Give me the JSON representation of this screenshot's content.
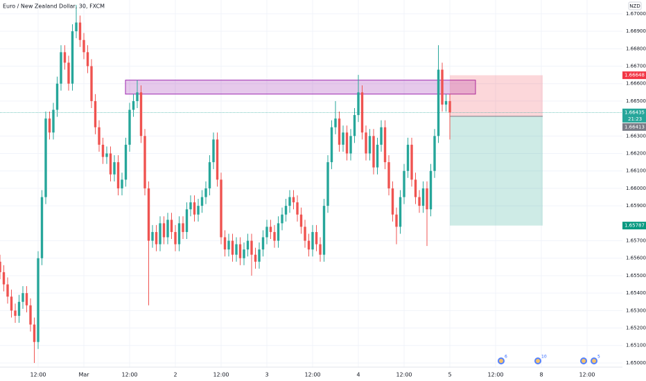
{
  "chart_data": {
    "type": "candlestick",
    "title": "Euro / New Zealand Dollar, 30, FXCM",
    "currency": "NZD",
    "up_color": "#26a69a",
    "down_color": "#ef5350",
    "xlim": [
      0,
      163.27
    ],
    "ylim": [
      1.64976,
      1.67079
    ],
    "xticks": [
      {
        "value": 10,
        "label": "12:00"
      },
      {
        "value": 22,
        "label": "Mar"
      },
      {
        "value": 34,
        "label": "12:00"
      },
      {
        "value": 46,
        "label": "2"
      },
      {
        "value": 58,
        "label": "12:00"
      },
      {
        "value": 70,
        "label": "3"
      },
      {
        "value": 82,
        "label": "12:00"
      },
      {
        "value": 94,
        "label": "4"
      },
      {
        "value": 106,
        "label": "12:00"
      },
      {
        "value": 118,
        "label": "5"
      },
      {
        "value": 130,
        "label": "12:00"
      },
      {
        "value": 142,
        "label": "8"
      },
      {
        "value": 154,
        "label": "12:00"
      }
    ],
    "yticks": [
      {
        "value": 1.67,
        "label": "1.67000"
      },
      {
        "value": 1.669,
        "label": "1.66900"
      },
      {
        "value": 1.668,
        "label": "1.66800"
      },
      {
        "value": 1.667,
        "label": "1.66700"
      },
      {
        "value": 1.666,
        "label": "1.66600"
      },
      {
        "value": 1.665,
        "label": "1.66500"
      },
      {
        "value": 1.663,
        "label": "1.66300"
      },
      {
        "value": 1.662,
        "label": "1.66200"
      },
      {
        "value": 1.661,
        "label": "1.66100"
      },
      {
        "value": 1.66,
        "label": "1.66000"
      },
      {
        "value": 1.659,
        "label": "1.65900"
      },
      {
        "value": 1.657,
        "label": "1.65700"
      },
      {
        "value": 1.656,
        "label": "1.65600"
      },
      {
        "value": 1.655,
        "label": "1.65500"
      },
      {
        "value": 1.654,
        "label": "1.65400"
      },
      {
        "value": 1.653,
        "label": "1.65300"
      },
      {
        "value": 1.652,
        "label": "1.65200"
      },
      {
        "value": 1.651,
        "label": "1.65100"
      },
      {
        "value": 1.65,
        "label": "1.65000"
      }
    ],
    "grid": true,
    "open": [
      1.6558,
      1.6552,
      1.6545,
      1.6538,
      1.653,
      1.6527,
      1.6535,
      1.654,
      1.6533,
      1.6522,
      1.6512,
      1.656,
      1.6595,
      1.664,
      1.6632,
      1.6645,
      1.666,
      1.6678,
      1.6672,
      1.666,
      1.669,
      1.6695,
      1.6685,
      1.6678,
      1.667,
      1.665,
      1.6635,
      1.6625,
      1.6618,
      1.662,
      1.6608,
      1.6615,
      1.66,
      1.6605,
      1.6625,
      1.6645,
      1.665,
      1.6655,
      1.663,
      1.66,
      1.657,
      1.6575,
      1.6568,
      1.658,
      1.6572,
      1.6582,
      1.6575,
      1.6568,
      1.658,
      1.6575,
      1.6588,
      1.6592,
      1.6585,
      1.659,
      1.6595,
      1.66,
      1.6615,
      1.6628,
      1.6605,
      1.6572,
      1.6565,
      1.657,
      1.6562,
      1.6568,
      1.656,
      1.6565,
      1.657,
      1.6562,
      1.6558,
      1.6565,
      1.6572,
      1.6578,
      1.6575,
      1.657,
      1.658,
      1.6585,
      1.659,
      1.6595,
      1.6592,
      1.6585,
      1.6578,
      1.657,
      1.6565,
      1.6575,
      1.6568,
      1.6562,
      1.659,
      1.6615,
      1.6635,
      1.664,
      1.6625,
      1.6632,
      1.662,
      1.663,
      1.6642,
      1.6655,
      1.6632,
      1.662,
      1.663,
      1.6612,
      1.6625,
      1.6635,
      1.6615,
      1.66,
      1.6585,
      1.6578,
      1.6595,
      1.661,
      1.6625,
      1.6605,
      1.6595,
      1.659,
      1.66,
      1.6588,
      1.661,
      1.663,
      1.6668,
      1.6648,
      1.665
    ],
    "high": [
      1.6562,
      1.6556,
      1.6549,
      1.6542,
      1.6534,
      1.6539,
      1.6544,
      1.6544,
      1.6537,
      1.6526,
      1.6564,
      1.6599,
      1.6644,
      1.6644,
      1.6649,
      1.6664,
      1.6682,
      1.6682,
      1.6676,
      1.6694,
      1.6705,
      1.6699,
      1.6689,
      1.6682,
      1.6674,
      1.6654,
      1.6639,
      1.6629,
      1.6624,
      1.6624,
      1.6619,
      1.6619,
      1.6609,
      1.6629,
      1.6649,
      1.6654,
      1.6662,
      1.6659,
      1.6634,
      1.6604,
      1.6579,
      1.6579,
      1.6584,
      1.6584,
      1.6586,
      1.6586,
      1.6579,
      1.6584,
      1.6584,
      1.6592,
      1.6596,
      1.6596,
      1.6594,
      1.6599,
      1.6604,
      1.6619,
      1.6632,
      1.6632,
      1.6609,
      1.6576,
      1.6574,
      1.6574,
      1.6572,
      1.6572,
      1.6569,
      1.6574,
      1.6574,
      1.6566,
      1.6569,
      1.6576,
      1.6582,
      1.6582,
      1.6579,
      1.6584,
      1.6589,
      1.6594,
      1.6599,
      1.6599,
      1.6596,
      1.6589,
      1.6582,
      1.6574,
      1.6579,
      1.6579,
      1.6572,
      1.6594,
      1.6619,
      1.6639,
      1.665,
      1.6644,
      1.6636,
      1.6636,
      1.6634,
      1.6646,
      1.6665,
      1.6659,
      1.6636,
      1.6634,
      1.6634,
      1.6629,
      1.6639,
      1.6639,
      1.6619,
      1.6604,
      1.6589,
      1.6599,
      1.6614,
      1.6629,
      1.6629,
      1.6609,
      1.6599,
      1.6604,
      1.6604,
      1.6614,
      1.6634,
      1.6682,
      1.6672,
      1.6654,
      1.6654
    ],
    "low": [
      1.6548,
      1.6541,
      1.6534,
      1.6526,
      1.6523,
      1.6523,
      1.6531,
      1.6529,
      1.6518,
      1.65,
      1.6508,
      1.6556,
      1.6591,
      1.6628,
      1.6628,
      1.6641,
      1.6656,
      1.6668,
      1.6656,
      1.6656,
      1.6686,
      1.6681,
      1.6674,
      1.6666,
      1.6646,
      1.6631,
      1.6621,
      1.6614,
      1.6614,
      1.6604,
      1.6604,
      1.6596,
      1.6596,
      1.6601,
      1.6621,
      1.6641,
      1.6646,
      1.6626,
      1.6596,
      1.6533,
      1.6566,
      1.6564,
      1.6564,
      1.6568,
      1.6568,
      1.6571,
      1.6564,
      1.6564,
      1.6571,
      1.6571,
      1.6584,
      1.6581,
      1.6581,
      1.6586,
      1.6591,
      1.6596,
      1.6611,
      1.6601,
      1.6568,
      1.6561,
      1.6561,
      1.6558,
      1.6558,
      1.6556,
      1.6556,
      1.6561,
      1.655,
      1.6554,
      1.6554,
      1.6561,
      1.6568,
      1.6571,
      1.6566,
      1.6566,
      1.6576,
      1.6581,
      1.6586,
      1.6588,
      1.6581,
      1.6574,
      1.6566,
      1.6561,
      1.6561,
      1.6564,
      1.6558,
      1.6558,
      1.6586,
      1.6611,
      1.6631,
      1.6621,
      1.6621,
      1.6616,
      1.6616,
      1.6626,
      1.6638,
      1.6628,
      1.6616,
      1.6616,
      1.6608,
      1.6608,
      1.6621,
      1.6611,
      1.6596,
      1.6581,
      1.6568,
      1.6574,
      1.6591,
      1.6606,
      1.6601,
      1.6591,
      1.6586,
      1.6586,
      1.6567,
      1.6584,
      1.6606,
      1.6626,
      1.6644,
      1.6644,
      1.6628
    ],
    "close": [
      1.6552,
      1.6545,
      1.6538,
      1.653,
      1.6527,
      1.6535,
      1.654,
      1.6533,
      1.6522,
      1.6512,
      1.656,
      1.6595,
      1.664,
      1.6632,
      1.6645,
      1.666,
      1.6678,
      1.6672,
      1.666,
      1.669,
      1.6695,
      1.6685,
      1.6678,
      1.667,
      1.665,
      1.6635,
      1.6625,
      1.6618,
      1.662,
      1.6608,
      1.6615,
      1.66,
      1.6605,
      1.6625,
      1.6645,
      1.665,
      1.6655,
      1.663,
      1.66,
      1.657,
      1.6575,
      1.6568,
      1.658,
      1.6572,
      1.6582,
      1.6575,
      1.6568,
      1.658,
      1.6575,
      1.6588,
      1.6592,
      1.6585,
      1.659,
      1.6595,
      1.66,
      1.6615,
      1.6628,
      1.6605,
      1.6572,
      1.6565,
      1.657,
      1.6562,
      1.6568,
      1.656,
      1.6565,
      1.657,
      1.6562,
      1.6558,
      1.6565,
      1.6572,
      1.6578,
      1.6575,
      1.657,
      1.658,
      1.6585,
      1.659,
      1.6595,
      1.6592,
      1.6585,
      1.6578,
      1.657,
      1.6565,
      1.6575,
      1.6568,
      1.6562,
      1.659,
      1.6615,
      1.6635,
      1.664,
      1.6625,
      1.6632,
      1.662,
      1.663,
      1.6642,
      1.6655,
      1.6632,
      1.662,
      1.663,
      1.6612,
      1.6625,
      1.6635,
      1.6615,
      1.66,
      1.6585,
      1.6578,
      1.6595,
      1.661,
      1.6625,
      1.6605,
      1.6595,
      1.659,
      1.66,
      1.6588,
      1.661,
      1.663,
      1.6668,
      1.6648,
      1.665,
      1.66435
    ],
    "countdown": "21:23",
    "zone": {
      "top": 1.6662,
      "bottom": 1.6654,
      "color": "#9c27b0"
    },
    "position": {
      "stop": 1.66648,
      "entry": 1.66413,
      "target": 1.65787
    },
    "events": [
      "6",
      "10",
      "5"
    ]
  }
}
